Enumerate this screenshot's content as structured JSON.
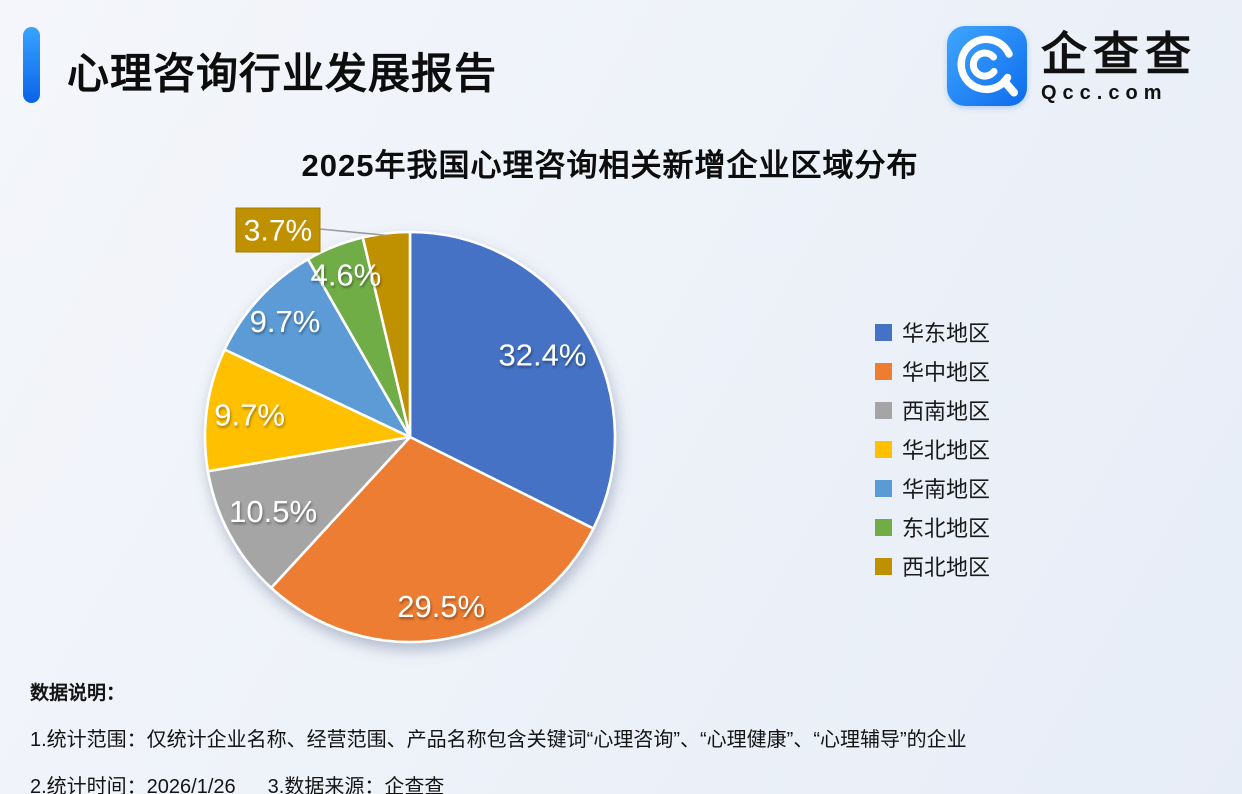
{
  "header": {
    "title": "心理咨询行业发展报告",
    "brand_name": "企查查",
    "brand_domain": "Qcc.com"
  },
  "chart_data": {
    "type": "pie",
    "title": "2025年我国心理咨询相关新增企业区域分布",
    "categories": [
      "华东地区",
      "华中地区",
      "西南地区",
      "华北地区",
      "华南地区",
      "东北地区",
      "西北地区"
    ],
    "values": [
      32.4,
      29.5,
      10.5,
      9.7,
      9.7,
      4.6,
      3.7
    ],
    "colors": [
      "#4472C4",
      "#ED7D31",
      "#A5A5A5",
      "#FFC000",
      "#5B9BD5",
      "#70AD47",
      "#BF9000"
    ],
    "labels": [
      "32.4%",
      "29.5%",
      "10.5%",
      "9.7%",
      "9.7%",
      "4.6%",
      "3.7%"
    ],
    "unit": "%",
    "start_angle_deg": 0,
    "direction": "clockwise",
    "legend_position": "right",
    "label_style": "inside-white",
    "callout_index": 6
  },
  "notes": {
    "heading": "数据说明：",
    "line1": "1.统计范围：仅统计企业名称、经营范围、产品名称包含关键词“心理咨询”、“心理健康”、“心理辅导”的企业",
    "stat_time": "2.统计时间：2026/1/26",
    "source": "3.数据来源：企查查"
  },
  "colors": {
    "accent_top": "#38a4ff",
    "accent_bottom": "#0b63e8",
    "background": "#eef2f9",
    "title_text": "#0d0d0d",
    "pie_label_text": "#ffffff",
    "callout_fill": "#BF9000",
    "callout_border": "#A67C00",
    "leader_line": "#9a9a9a",
    "slice_separator": "#ffffff"
  }
}
